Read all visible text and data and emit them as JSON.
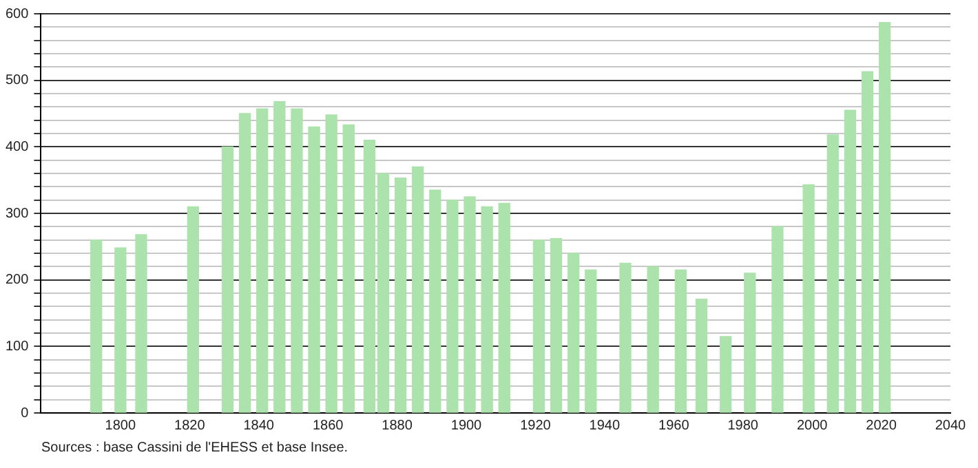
{
  "chart_data": {
    "type": "bar",
    "color": "#ace3ac",
    "x": [
      1793,
      1800,
      1806,
      1821,
      1831,
      1836,
      1841,
      1846,
      1851,
      1856,
      1861,
      1866,
      1872,
      1876,
      1881,
      1886,
      1891,
      1896,
      1901,
      1906,
      1911,
      1921,
      1926,
      1931,
      1936,
      1946,
      1954,
      1962,
      1968,
      1975,
      1982,
      1990,
      1999,
      2006,
      2011,
      2016,
      2021
    ],
    "values": [
      260,
      248,
      268,
      310,
      400,
      450,
      457,
      468,
      457,
      430,
      448,
      433,
      410,
      360,
      353,
      370,
      335,
      320,
      325,
      310,
      315,
      260,
      262,
      240,
      215,
      225,
      220,
      215,
      171,
      115,
      210,
      280,
      343,
      418,
      455,
      513,
      587
    ],
    "xlim": [
      1777,
      2040
    ],
    "xticks": [
      1800,
      1820,
      1840,
      1860,
      1880,
      1900,
      1920,
      1940,
      1960,
      1980,
      2000,
      2020,
      2040
    ],
    "ylim": [
      0,
      600
    ],
    "yticks": [
      0,
      {
        "value": 20,
        "label": null
      },
      {
        "value": 40,
        "label": null
      },
      {
        "value": 60,
        "label": null
      },
      {
        "value": 80,
        "label": null
      },
      100,
      {
        "value": 120,
        "label": null
      },
      {
        "value": 140,
        "label": null
      },
      {
        "value": 160,
        "label": null
      },
      {
        "value": 180,
        "label": null
      },
      200,
      {
        "value": 220,
        "label": null
      },
      {
        "value": 240,
        "label": null
      },
      {
        "value": 260,
        "label": null
      },
      {
        "value": 280,
        "label": null
      },
      300,
      {
        "value": 320,
        "label": null
      },
      {
        "value": 340,
        "label": null
      },
      {
        "value": 360,
        "label": null
      },
      {
        "value": 380,
        "label": null
      },
      400,
      {
        "value": 420,
        "label": null
      },
      {
        "value": 440,
        "label": null
      },
      {
        "value": 460,
        "label": null
      },
      {
        "value": 480,
        "label": null
      },
      500,
      {
        "value": 520,
        "label": null
      },
      {
        "value": 540,
        "label": null
      },
      {
        "value": 560,
        "label": null
      },
      {
        "value": 580,
        "label": null
      },
      600
    ],
    "grid": "y",
    "annotations": [
      "Sources : base Cassini de l'EHESS et base Insee."
    ]
  }
}
